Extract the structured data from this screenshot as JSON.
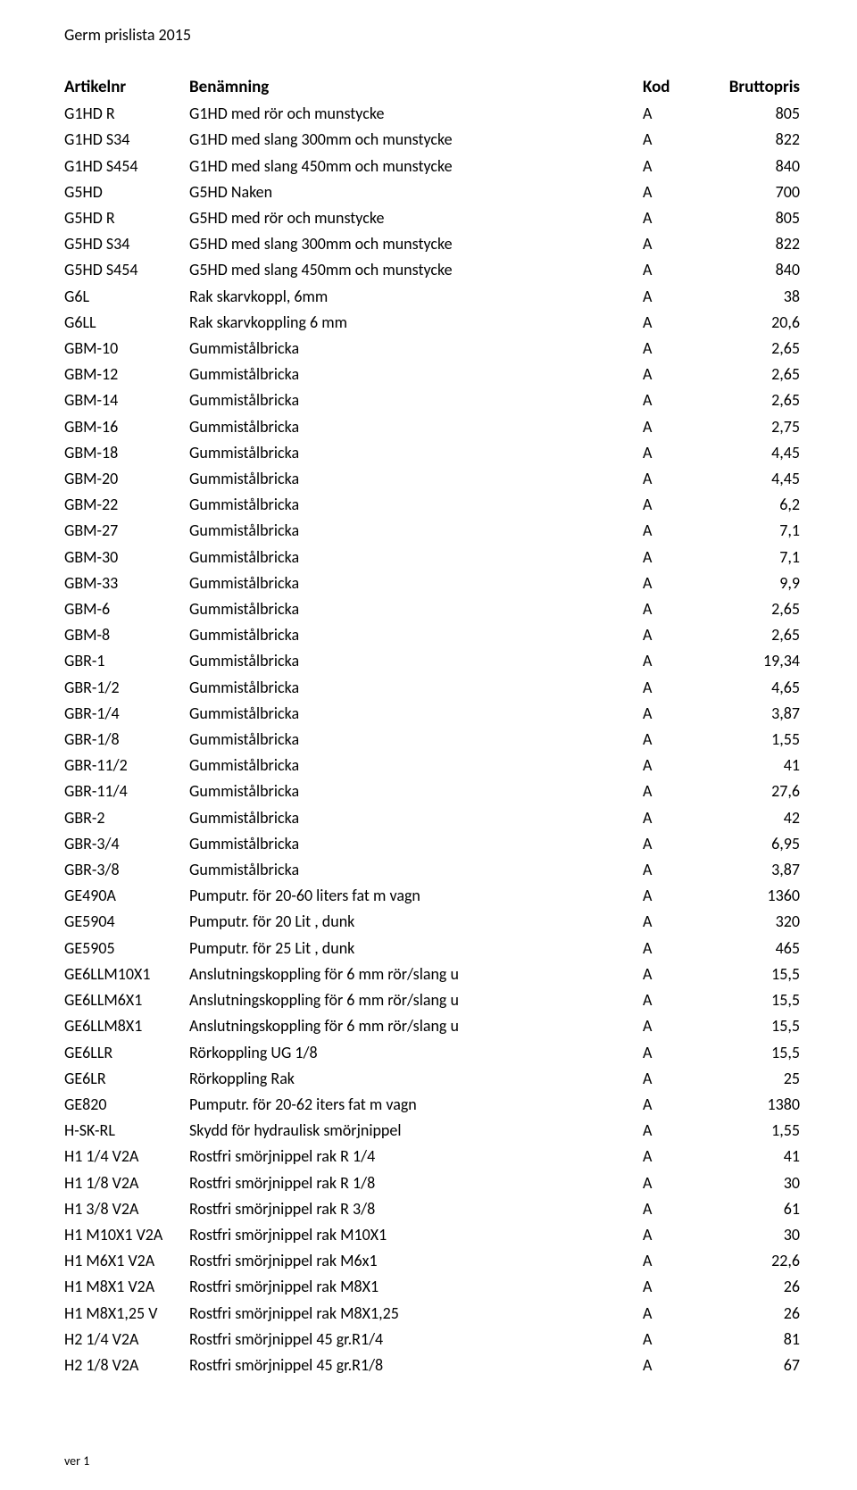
{
  "doc_title": "Germ prislista 2015",
  "footer": "ver 1",
  "table": {
    "headers": {
      "col1": "Artikelnr",
      "col2": "Benämning",
      "col3": "Kod",
      "col4": "Bruttopris"
    },
    "rows": [
      {
        "a": "G1HD R",
        "b": "G1HD med rör och munstycke",
        "k": "A",
        "p": "805"
      },
      {
        "a": "G1HD S34",
        "b": "G1HD med slang 300mm och munstycke",
        "k": "A",
        "p": "822"
      },
      {
        "a": "G1HD S454",
        "b": "G1HD med slang 450mm och munstycke",
        "k": "A",
        "p": "840"
      },
      {
        "a": "G5HD",
        "b": "G5HD Naken",
        "k": "A",
        "p": "700"
      },
      {
        "a": "G5HD R",
        "b": "G5HD med rör och munstycke",
        "k": "A",
        "p": "805"
      },
      {
        "a": "G5HD S34",
        "b": "G5HD med slang 300mm och munstycke",
        "k": "A",
        "p": "822"
      },
      {
        "a": "G5HD S454",
        "b": "G5HD med slang 450mm och munstycke",
        "k": "A",
        "p": "840"
      },
      {
        "a": "G6L",
        "b": "Rak skarvkoppl, 6mm",
        "k": "A",
        "p": "38"
      },
      {
        "a": "G6LL",
        "b": "Rak skarvkoppling 6 mm",
        "k": "A",
        "p": "20,6"
      },
      {
        "a": "GBM-10",
        "b": "Gummistålbricka",
        "k": "A",
        "p": "2,65"
      },
      {
        "a": "GBM-12",
        "b": "Gummistålbricka",
        "k": "A",
        "p": "2,65"
      },
      {
        "a": "GBM-14",
        "b": "Gummistålbricka",
        "k": "A",
        "p": "2,65"
      },
      {
        "a": "GBM-16",
        "b": "Gummistålbricka",
        "k": "A",
        "p": "2,75"
      },
      {
        "a": "GBM-18",
        "b": "Gummistålbricka",
        "k": "A",
        "p": "4,45"
      },
      {
        "a": "GBM-20",
        "b": "Gummistålbricka",
        "k": "A",
        "p": "4,45"
      },
      {
        "a": "GBM-22",
        "b": "Gummistålbricka",
        "k": "A",
        "p": "6,2"
      },
      {
        "a": "GBM-27",
        "b": "Gummistålbricka",
        "k": "A",
        "p": "7,1"
      },
      {
        "a": "GBM-30",
        "b": "Gummistålbricka",
        "k": "A",
        "p": "7,1"
      },
      {
        "a": "GBM-33",
        "b": "Gummistålbricka",
        "k": "A",
        "p": "9,9"
      },
      {
        "a": "GBM-6",
        "b": "Gummistålbricka",
        "k": "A",
        "p": "2,65"
      },
      {
        "a": "GBM-8",
        "b": "Gummistålbricka",
        "k": "A",
        "p": "2,65"
      },
      {
        "a": "GBR-1",
        "b": "Gummistålbricka",
        "k": "A",
        "p": "19,34"
      },
      {
        "a": "GBR-1/2",
        "b": "Gummistålbricka",
        "k": "A",
        "p": "4,65"
      },
      {
        "a": "GBR-1/4",
        "b": "Gummistålbricka",
        "k": "A",
        "p": "3,87"
      },
      {
        "a": "GBR-1/8",
        "b": "Gummistålbricka",
        "k": "A",
        "p": "1,55"
      },
      {
        "a": "GBR-11/2",
        "b": "Gummistålbricka",
        "k": "A",
        "p": "41"
      },
      {
        "a": "GBR-11/4",
        "b": "Gummistålbricka",
        "k": "A",
        "p": "27,6"
      },
      {
        "a": "GBR-2",
        "b": "Gummistålbricka",
        "k": "A",
        "p": "42"
      },
      {
        "a": "GBR-3/4",
        "b": "Gummistålbricka",
        "k": "A",
        "p": "6,95"
      },
      {
        "a": "GBR-3/8",
        "b": "Gummistålbricka",
        "k": "A",
        "p": "3,87"
      },
      {
        "a": "GE490A",
        "b": "Pumputr. för 20-60 liters fat m vagn",
        "k": "A",
        "p": "1360"
      },
      {
        "a": "GE5904",
        "b": "Pumputr. för  20 Lit , dunk",
        "k": "A",
        "p": "320"
      },
      {
        "a": "GE5905",
        "b": "Pumputr. för  25 Lit , dunk",
        "k": "A",
        "p": "465"
      },
      {
        "a": "GE6LLM10X1",
        "b": "Anslutningskoppling för 6 mm rör/slang u",
        "k": "A",
        "p": "15,5"
      },
      {
        "a": "GE6LLM6X1",
        "b": "Anslutningskoppling för 6 mm rör/slang u",
        "k": "A",
        "p": "15,5"
      },
      {
        "a": "GE6LLM8X1",
        "b": "Anslutningskoppling för 6 mm rör/slang u",
        "k": "A",
        "p": "15,5"
      },
      {
        "a": "GE6LLR",
        "b": "Rörkoppling UG 1/8",
        "k": "A",
        "p": "15,5"
      },
      {
        "a": "GE6LR",
        "b": "Rörkoppling Rak",
        "k": "A",
        "p": "25"
      },
      {
        "a": "GE820",
        "b": "Pumputr. för 20-62 iters fat m vagn",
        "k": "A",
        "p": "1380"
      },
      {
        "a": "H-SK-RL",
        "b": "Skydd för hydraulisk smörjnippel",
        "k": "A",
        "p": "1,55"
      },
      {
        "a": "H1 1/4 V2A",
        "b": "Rostfri smörjnippel rak R 1/4",
        "k": "A",
        "p": "41"
      },
      {
        "a": "H1 1/8 V2A",
        "b": "Rostfri smörjnippel rak R 1/8",
        "k": "A",
        "p": "30"
      },
      {
        "a": "H1 3/8 V2A",
        "b": "Rostfri smörjnippel rak R 3/8",
        "k": "A",
        "p": "61"
      },
      {
        "a": "H1 M10X1 V2A",
        "b": "Rostfri smörjnippel rak M10X1",
        "k": "A",
        "p": "30"
      },
      {
        "a": "H1 M6X1 V2A",
        "b": "Rostfri smörjnippel rak M6x1",
        "k": "A",
        "p": "22,6"
      },
      {
        "a": "H1 M8X1 V2A",
        "b": "Rostfri smörjnippel rak M8X1",
        "k": "A",
        "p": "26"
      },
      {
        "a": "H1 M8X1,25 V",
        "b": "Rostfri smörjnippel rak M8X1,25",
        "k": "A",
        "p": "26"
      },
      {
        "a": "H2 1/4 V2A",
        "b": "Rostfri smörjnippel 45 gr.R1/4",
        "k": "A",
        "p": "81"
      },
      {
        "a": "H2 1/8 V2A",
        "b": "Rostfri smörjnippel 45 gr.R1/8",
        "k": "A",
        "p": "67"
      }
    ]
  }
}
